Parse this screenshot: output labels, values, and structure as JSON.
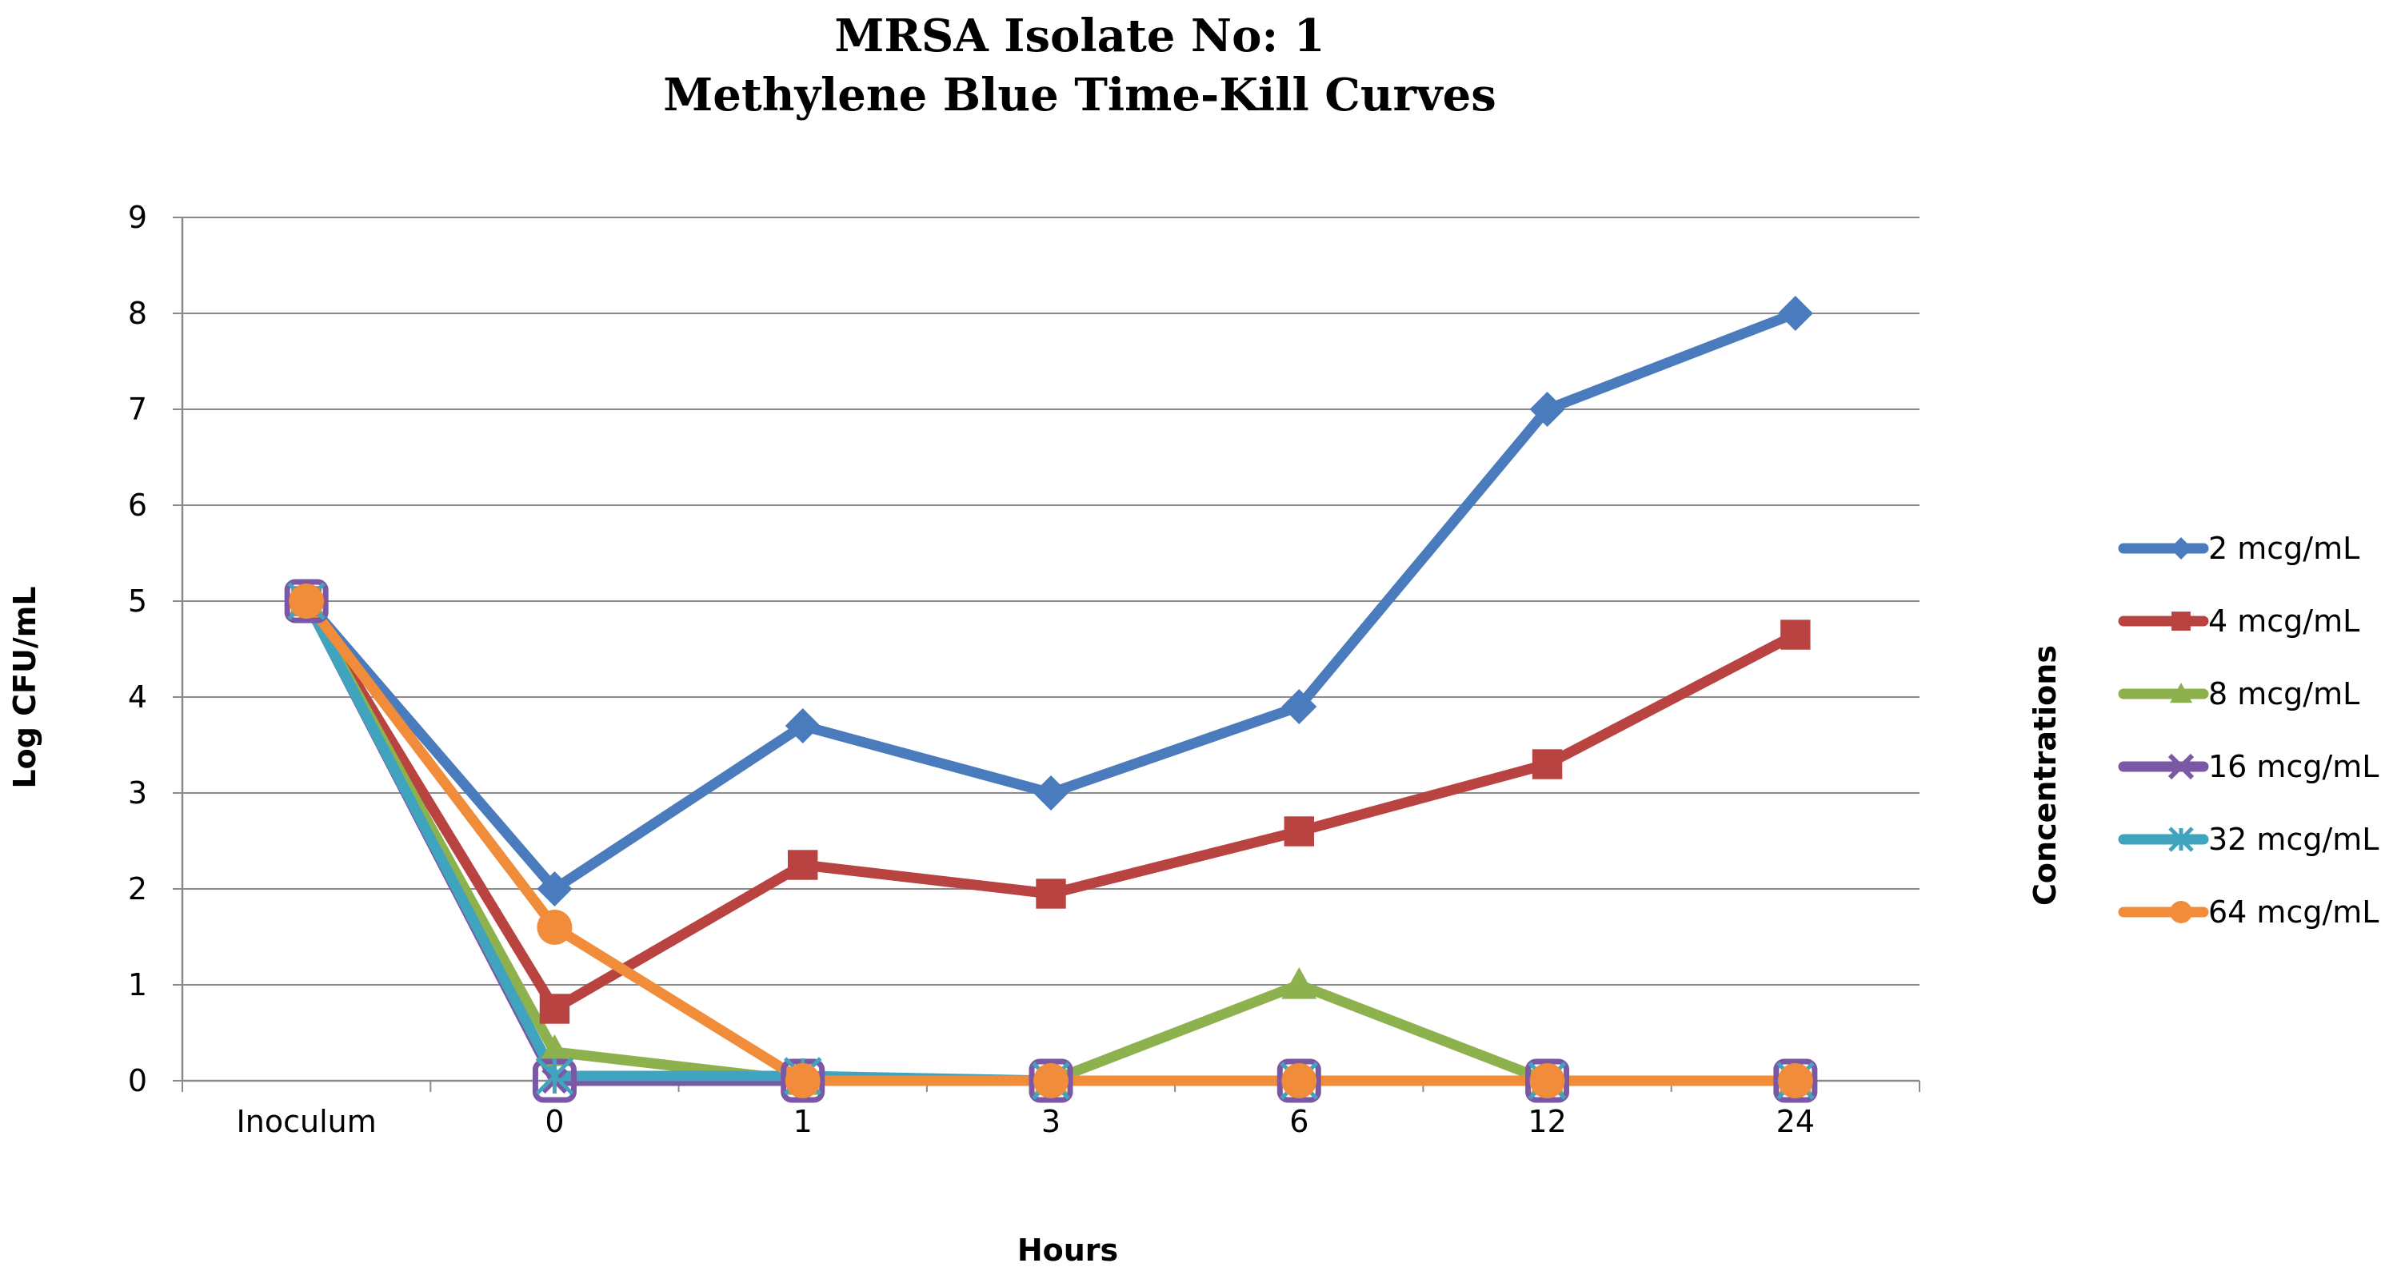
{
  "chart_data": {
    "type": "line",
    "title": [
      "MRSA Isolate No: 1",
      "Methylene Blue Time-Kill Curves"
    ],
    "xlabel": "Hours",
    "ylabel": "Log CFU/mL",
    "legend_title": "Concentrations",
    "legend_position": "right",
    "grid": true,
    "ylim": [
      0,
      9
    ],
    "yticks": [
      "0",
      "1",
      "2",
      "3",
      "4",
      "5",
      "6",
      "7",
      "8",
      "9"
    ],
    "categories": [
      "Inoculum",
      "0",
      "1",
      "3",
      "6",
      "12",
      "24"
    ],
    "series": [
      {
        "name": "2 mcg/mL",
        "color": "#4a7bbd",
        "marker": "diamond",
        "values": [
          5,
          2,
          3.7,
          3,
          3.9,
          7,
          8
        ]
      },
      {
        "name": "4 mcg/mL",
        "color": "#b94341",
        "marker": "square",
        "values": [
          5,
          0.75,
          2.25,
          1.95,
          2.6,
          3.3,
          4.65
        ]
      },
      {
        "name": "8 mcg/mL",
        "color": "#8db14c",
        "marker": "triangle",
        "values": [
          5,
          0.3,
          0,
          0,
          1,
          0,
          0
        ]
      },
      {
        "name": "16 mcg/mL",
        "color": "#7a58a5",
        "marker": "x",
        "values": [
          5,
          0,
          0,
          0,
          0,
          0,
          0
        ]
      },
      {
        "name": "32 mcg/mL",
        "color": "#41a4bf",
        "marker": "star",
        "values": [
          5,
          0.05,
          0.05,
          0,
          0,
          0,
          0
        ]
      },
      {
        "name": "64 mcg/mL",
        "color": "#f08c3a",
        "marker": "circle",
        "values": [
          5,
          1.6,
          0,
          0,
          0,
          0,
          0
        ]
      }
    ]
  }
}
